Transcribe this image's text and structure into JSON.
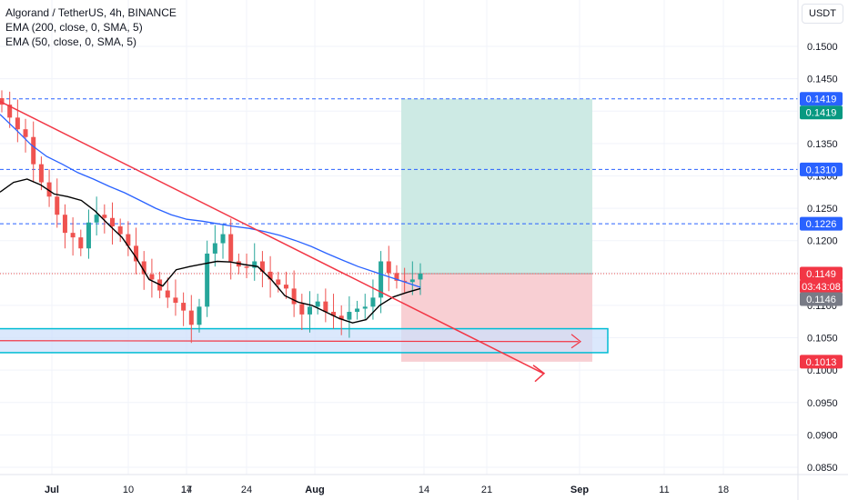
{
  "legend": {
    "title": "Algorand / TetherUS, 4h, BINANCE",
    "ema200": "EMA (200, close, 0, SMA, 5)",
    "ema50": "EMA (50, close, 0, SMA, 5)"
  },
  "currency": "USDT",
  "colors": {
    "up": "#26a69a",
    "down": "#ef5350",
    "ema200": "#2962ff",
    "ema50": "#000000",
    "trendline": "#f23645",
    "level": "#2962ff",
    "zoneBorder": "#00bcd4",
    "zoneFill": "#cfe0fb",
    "profit": "#cdeae4",
    "loss": "#f8cfd3",
    "grid": "#f0f3fa",
    "axisText": "#131722"
  },
  "chart_data": {
    "type": "candlestick",
    "title": "Algorand / TetherUS, 4h, BINANCE",
    "x_axis": {
      "tick_labels": [
        "Jul",
        "10",
        "14",
        "17",
        "24",
        "Aug",
        "14",
        "21",
        "Sep",
        "11",
        "18"
      ]
    },
    "y_axis": {
      "range": [
        0.082,
        0.154
      ],
      "tick_labels": [
        "0.1500",
        "0.1450",
        "0.1400",
        "0.1350",
        "0.1300",
        "0.1250",
        "0.1200",
        "0.1150",
        "0.1100",
        "0.1050",
        "0.1000",
        "0.0950",
        "0.0900",
        "0.0850"
      ]
    },
    "price_labels": [
      {
        "text": "0.1419",
        "value": 0.1419,
        "color": "#2962ff"
      },
      {
        "text": "0.1419",
        "value": 0.1419,
        "color": "#089981"
      },
      {
        "text": "0.1310",
        "value": 0.131,
        "color": "#2962ff"
      },
      {
        "text": "0.1226",
        "value": 0.1226,
        "color": "#2962ff"
      },
      {
        "text": "0.1149",
        "value": 0.1149,
        "color": "#f23645"
      },
      {
        "text": "03:43:08",
        "value": 0.1139,
        "color": "#f23645"
      },
      {
        "text": "0.1146",
        "value": 0.1146,
        "color": "#787b86"
      },
      {
        "text": "0.1013",
        "value": 0.1013,
        "color": "#f23645"
      }
    ],
    "horizontal_levels": [
      0.1419,
      0.131,
      0.1226
    ],
    "last_price": 0.1149,
    "support_zone": {
      "top": 0.1064,
      "bottom": 0.1027
    },
    "position": {
      "entry": 0.1149,
      "target": 0.1419,
      "stop": 0.1013
    },
    "trendline": {
      "start": 0.1415,
      "end": 0.0995
    },
    "ema200_points": [
      0.1395,
      0.1372,
      0.1348,
      0.133,
      0.1318,
      0.1305,
      0.1295,
      0.1284,
      0.1274,
      0.1262,
      0.125,
      0.124,
      0.1233,
      0.123,
      0.1226,
      0.1222,
      0.1219,
      0.1214,
      0.1208,
      0.12,
      0.1191,
      0.118,
      0.117,
      0.116,
      0.1152,
      0.1144,
      0.1136,
      0.1128
    ],
    "ema50_points": [
      0.1275,
      0.129,
      0.1295,
      0.1286,
      0.1272,
      0.1268,
      0.1262,
      0.1246,
      0.1225,
      0.1205,
      0.1175,
      0.114,
      0.113,
      0.1155,
      0.116,
      0.1164,
      0.1168,
      0.1167,
      0.1163,
      0.116,
      0.114,
      0.1115,
      0.1105,
      0.11,
      0.109,
      0.108,
      0.1073,
      0.1078,
      0.11,
      0.1113,
      0.112,
      0.1126
    ],
    "candle_closes": [
      0.141,
      0.139,
      0.1372,
      0.136,
      0.1318,
      0.129,
      0.1268,
      0.124,
      0.1212,
      0.1205,
      0.1188,
      0.1228,
      0.124,
      0.1235,
      0.1222,
      0.121,
      0.1192,
      0.1168,
      0.1148,
      0.114,
      0.1123,
      0.1112,
      0.1104,
      0.1092,
      0.107,
      0.1098,
      0.118,
      0.1196,
      0.121,
      0.1168,
      0.116,
      0.1158,
      0.1168,
      0.1152,
      0.114,
      0.1132,
      0.1126,
      0.1102,
      0.1086,
      0.1098,
      0.1106,
      0.109,
      0.1084,
      0.1078,
      0.109,
      0.1095,
      0.1098,
      0.1112,
      0.1168,
      0.115,
      0.1138,
      0.1136,
      0.114,
      0.1149
    ]
  }
}
